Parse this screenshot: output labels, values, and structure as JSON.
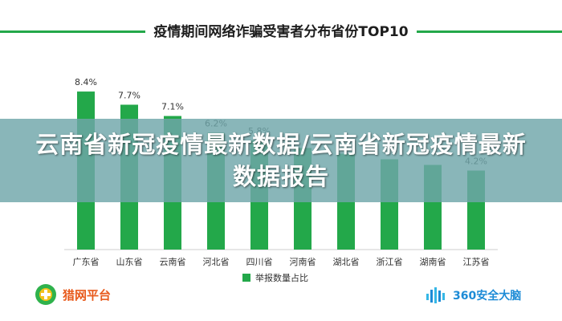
{
  "chart_data": {
    "type": "bar",
    "title": "疫情期间网络诈骗受害者分布省份TOP10",
    "categories": [
      "广东省",
      "山东省",
      "云南省",
      "河北省",
      "四川省",
      "河南省",
      "湖北省",
      "浙江省",
      "湖南省",
      "江苏省"
    ],
    "series": [
      {
        "name": "举报数量占比",
        "values": [
          8.4,
          7.7,
          7.1,
          6.2,
          5.8,
          5.4,
          5.1,
          4.8,
          4.5,
          4.2
        ],
        "labels": [
          "8.4%",
          "7.7%",
          "7.1%",
          "6.2%",
          "5.8%",
          "",
          "",
          "",
          "",
          "4.2%"
        ]
      }
    ],
    "ylim": [
      0,
      9
    ],
    "grid": false,
    "legend": "bottom",
    "colors": {
      "bar": "#23a84a",
      "title_rule": "#23a84a"
    }
  },
  "overlay": {
    "headline": "云南省新冠疫情最新数据/云南省新冠疫情最新数据报告"
  },
  "footer": {
    "left_brand": "猎网平台",
    "right_brand": "360安全大脑"
  }
}
